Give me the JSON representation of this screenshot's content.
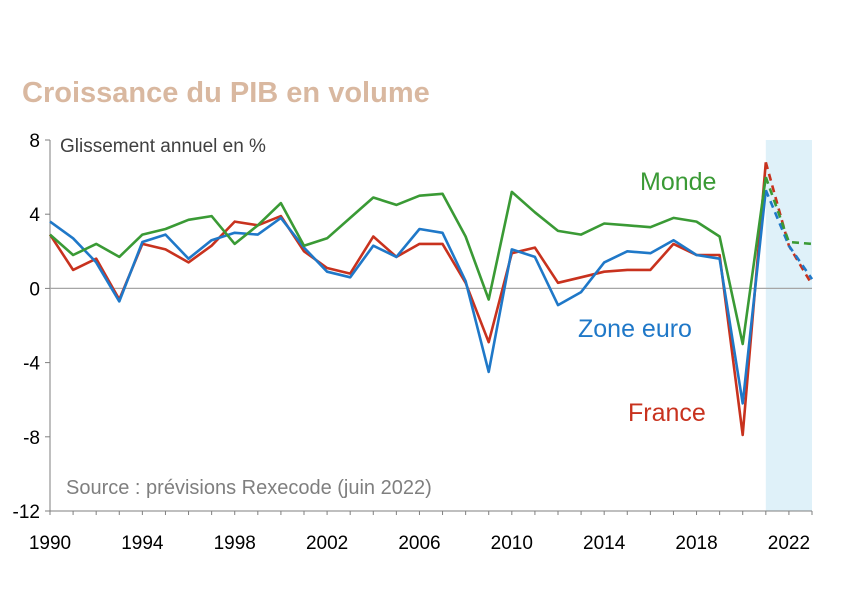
{
  "chart_data": {
    "type": "line",
    "title": "Croissance du PIB en volume",
    "ylabel": "Glissement annuel en %",
    "source": "Source : prévisions Rexecode (juin 2022)",
    "ylim": [
      -12,
      8
    ],
    "yticks": [
      8,
      4,
      0,
      -4,
      -8,
      -12
    ],
    "xlim": [
      1990,
      2023
    ],
    "xticks": [
      1990,
      1994,
      1998,
      2002,
      2006,
      2010,
      2014,
      2018,
      2022
    ],
    "forecast_start": 2021,
    "forecast_band": [
      2021,
      2023
    ],
    "colors": {
      "title": "#d9b8a0",
      "forecast_band": "#dff1f9",
      "zero_line": "#a6a6a6",
      "axis": "#7f7f7f"
    },
    "series": [
      {
        "name": "Monde",
        "color": "#3a9a35",
        "x": [
          1990,
          1991,
          1992,
          1993,
          1994,
          1995,
          1996,
          1997,
          1998,
          1999,
          2000,
          2001,
          2002,
          2003,
          2004,
          2005,
          2006,
          2007,
          2008,
          2009,
          2010,
          2011,
          2012,
          2013,
          2014,
          2015,
          2016,
          2017,
          2018,
          2019,
          2020,
          2021,
          2022,
          2023
        ],
        "values": [
          2.9,
          1.8,
          2.4,
          1.7,
          2.9,
          3.2,
          3.7,
          3.9,
          2.4,
          3.4,
          4.6,
          2.3,
          2.7,
          3.8,
          4.9,
          4.5,
          5.0,
          5.1,
          2.8,
          -0.6,
          5.2,
          4.1,
          3.1,
          2.9,
          3.5,
          3.4,
          3.3,
          3.8,
          3.6,
          2.8,
          -3.0,
          6.0,
          2.5,
          2.4
        ]
      },
      {
        "name": "Zone euro",
        "color": "#1f78c8",
        "x": [
          1990,
          1991,
          1992,
          1993,
          1994,
          1995,
          1996,
          1997,
          1998,
          1999,
          2000,
          2001,
          2002,
          2003,
          2004,
          2005,
          2006,
          2007,
          2008,
          2009,
          2010,
          2011,
          2012,
          2013,
          2014,
          2015,
          2016,
          2017,
          2018,
          2019,
          2020,
          2021,
          2022,
          2023
        ],
        "values": [
          3.6,
          2.7,
          1.4,
          -0.7,
          2.5,
          2.9,
          1.6,
          2.6,
          3.0,
          2.9,
          3.8,
          2.2,
          0.9,
          0.6,
          2.3,
          1.7,
          3.2,
          3.0,
          0.4,
          -4.5,
          2.1,
          1.7,
          -0.9,
          -0.2,
          1.4,
          2.0,
          1.9,
          2.6,
          1.8,
          1.6,
          -6.2,
          5.3,
          2.3,
          0.5
        ]
      },
      {
        "name": "France",
        "color": "#c8321e",
        "x": [
          1990,
          1991,
          1992,
          1993,
          1994,
          1995,
          1996,
          1997,
          1998,
          1999,
          2000,
          2001,
          2002,
          2003,
          2004,
          2005,
          2006,
          2007,
          2008,
          2009,
          2010,
          2011,
          2012,
          2013,
          2014,
          2015,
          2016,
          2017,
          2018,
          2019,
          2020,
          2021,
          2022,
          2023
        ],
        "values": [
          2.9,
          1.0,
          1.6,
          -0.6,
          2.4,
          2.1,
          1.4,
          2.3,
          3.6,
          3.4,
          3.9,
          2.0,
          1.1,
          0.8,
          2.8,
          1.7,
          2.4,
          2.4,
          0.3,
          -2.9,
          1.9,
          2.2,
          0.3,
          0.6,
          0.9,
          1.0,
          1.0,
          2.4,
          1.8,
          1.8,
          -7.9,
          6.8,
          2.3,
          0.2
        ]
      }
    ]
  }
}
